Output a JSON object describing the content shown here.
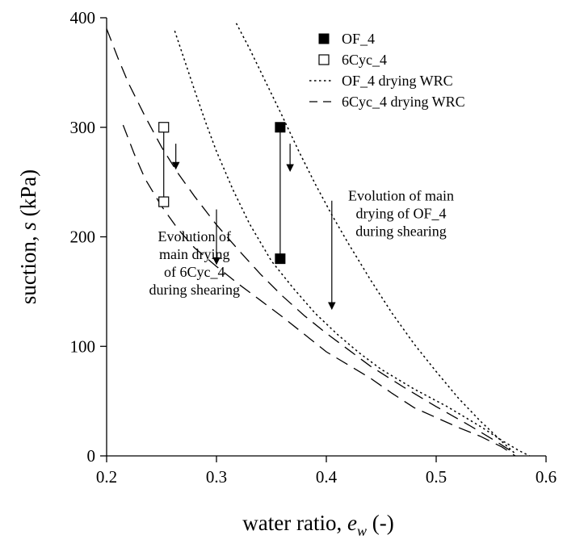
{
  "chart_data": {
    "type": "scatter",
    "xlabel": "water ratio, e_w (-)",
    "ylabel": "suction, s (kPa)",
    "xlim": [
      0.2,
      0.6
    ],
    "ylim": [
      0,
      400
    ],
    "xticks": [
      "0.2",
      "0.3",
      "0.4",
      "0.5",
      "0.6"
    ],
    "yticks": [
      "0",
      "100",
      "200",
      "300",
      "400"
    ],
    "grid": false,
    "legend_position": "top-right",
    "series": [
      {
        "name": "OF_4",
        "marker": "filled-square",
        "points": [
          [
            0.358,
            300
          ],
          [
            0.358,
            180
          ]
        ]
      },
      {
        "name": "6Cyc_4",
        "marker": "open-square",
        "points": [
          [
            0.252,
            300
          ],
          [
            0.252,
            232
          ]
        ]
      },
      {
        "name": "OF_4 drying WRC",
        "line": "dotted",
        "curves": [
          [
            [
              0.318,
              395
            ],
            [
              0.33,
              372
            ],
            [
              0.345,
              341
            ],
            [
              0.36,
              310
            ],
            [
              0.375,
              278
            ],
            [
              0.39,
              248
            ],
            [
              0.405,
              220
            ],
            [
              0.42,
              194
            ],
            [
              0.44,
              161
            ],
            [
              0.46,
              130
            ],
            [
              0.48,
              102
            ],
            [
              0.5,
              77
            ],
            [
              0.52,
              53
            ],
            [
              0.54,
              32
            ],
            [
              0.56,
              13
            ],
            [
              0.572,
              2
            ]
          ],
          [
            [
              0.262,
              388
            ],
            [
              0.27,
              364
            ],
            [
              0.28,
              334
            ],
            [
              0.29,
              305
            ],
            [
              0.3,
              278
            ],
            [
              0.315,
              243
            ],
            [
              0.33,
              212
            ],
            [
              0.35,
              178
            ],
            [
              0.37,
              153
            ],
            [
              0.39,
              130
            ],
            [
              0.41,
              111
            ],
            [
              0.43,
              94
            ],
            [
              0.45,
              79
            ],
            [
              0.48,
              61
            ],
            [
              0.51,
              45
            ],
            [
              0.54,
              27
            ],
            [
              0.56,
              14
            ],
            [
              0.575,
              5
            ],
            [
              0.585,
              0
            ]
          ]
        ]
      },
      {
        "name": "6Cyc_4 drying WRC",
        "line": "dashed",
        "curves": [
          [
            [
              0.2,
              390
            ],
            [
              0.21,
              364
            ],
            [
              0.22,
              340
            ],
            [
              0.235,
              310
            ],
            [
              0.25,
              282
            ],
            [
              0.265,
              258
            ],
            [
              0.28,
              237
            ],
            [
              0.3,
              211
            ],
            [
              0.32,
              188
            ],
            [
              0.34,
              166
            ],
            [
              0.36,
              146
            ],
            [
              0.38,
              128
            ],
            [
              0.4,
              112
            ],
            [
              0.42,
              97
            ],
            [
              0.44,
              82
            ],
            [
              0.47,
              63
            ],
            [
              0.5,
              45
            ],
            [
              0.53,
              28
            ],
            [
              0.555,
              13
            ],
            [
              0.572,
              2
            ]
          ],
          [
            [
              0.215,
              302
            ],
            [
              0.225,
              276
            ],
            [
              0.235,
              253
            ],
            [
              0.25,
              228
            ],
            [
              0.265,
              207
            ],
            [
              0.28,
              190
            ],
            [
              0.3,
              173
            ],
            [
              0.32,
              157
            ],
            [
              0.34,
              142
            ],
            [
              0.36,
              127
            ],
            [
              0.38,
              111
            ],
            [
              0.4,
              95
            ],
            [
              0.42,
              83
            ],
            [
              0.44,
              71
            ],
            [
              0.46,
              57
            ],
            [
              0.48,
              44
            ],
            [
              0.5,
              35
            ],
            [
              0.52,
              26
            ],
            [
              0.54,
              18
            ],
            [
              0.56,
              8
            ],
            [
              0.572,
              0
            ]
          ]
        ]
      }
    ],
    "vertical_links": [
      {
        "x": 0.252,
        "y1": 300,
        "y2": 232
      },
      {
        "x": 0.358,
        "y1": 300,
        "y2": 180
      }
    ],
    "arrows": [
      {
        "x": 0.263,
        "y1": 285,
        "y2": 262
      },
      {
        "x": 0.3,
        "y1": 225,
        "y2": 175
      },
      {
        "x": 0.367,
        "y1": 285,
        "y2": 260
      },
      {
        "x": 0.405,
        "y1": 233,
        "y2": 134
      }
    ],
    "annotations": [
      {
        "lines": [
          "Evolution of",
          "main drying",
          "of 6Cyc_4",
          "during shearing"
        ],
        "x": 0.28,
        "y": 196
      },
      {
        "lines": [
          "Evolution of main",
          "drying of OF_4",
          "during shearing"
        ],
        "x": 0.468,
        "y": 233
      }
    ]
  }
}
